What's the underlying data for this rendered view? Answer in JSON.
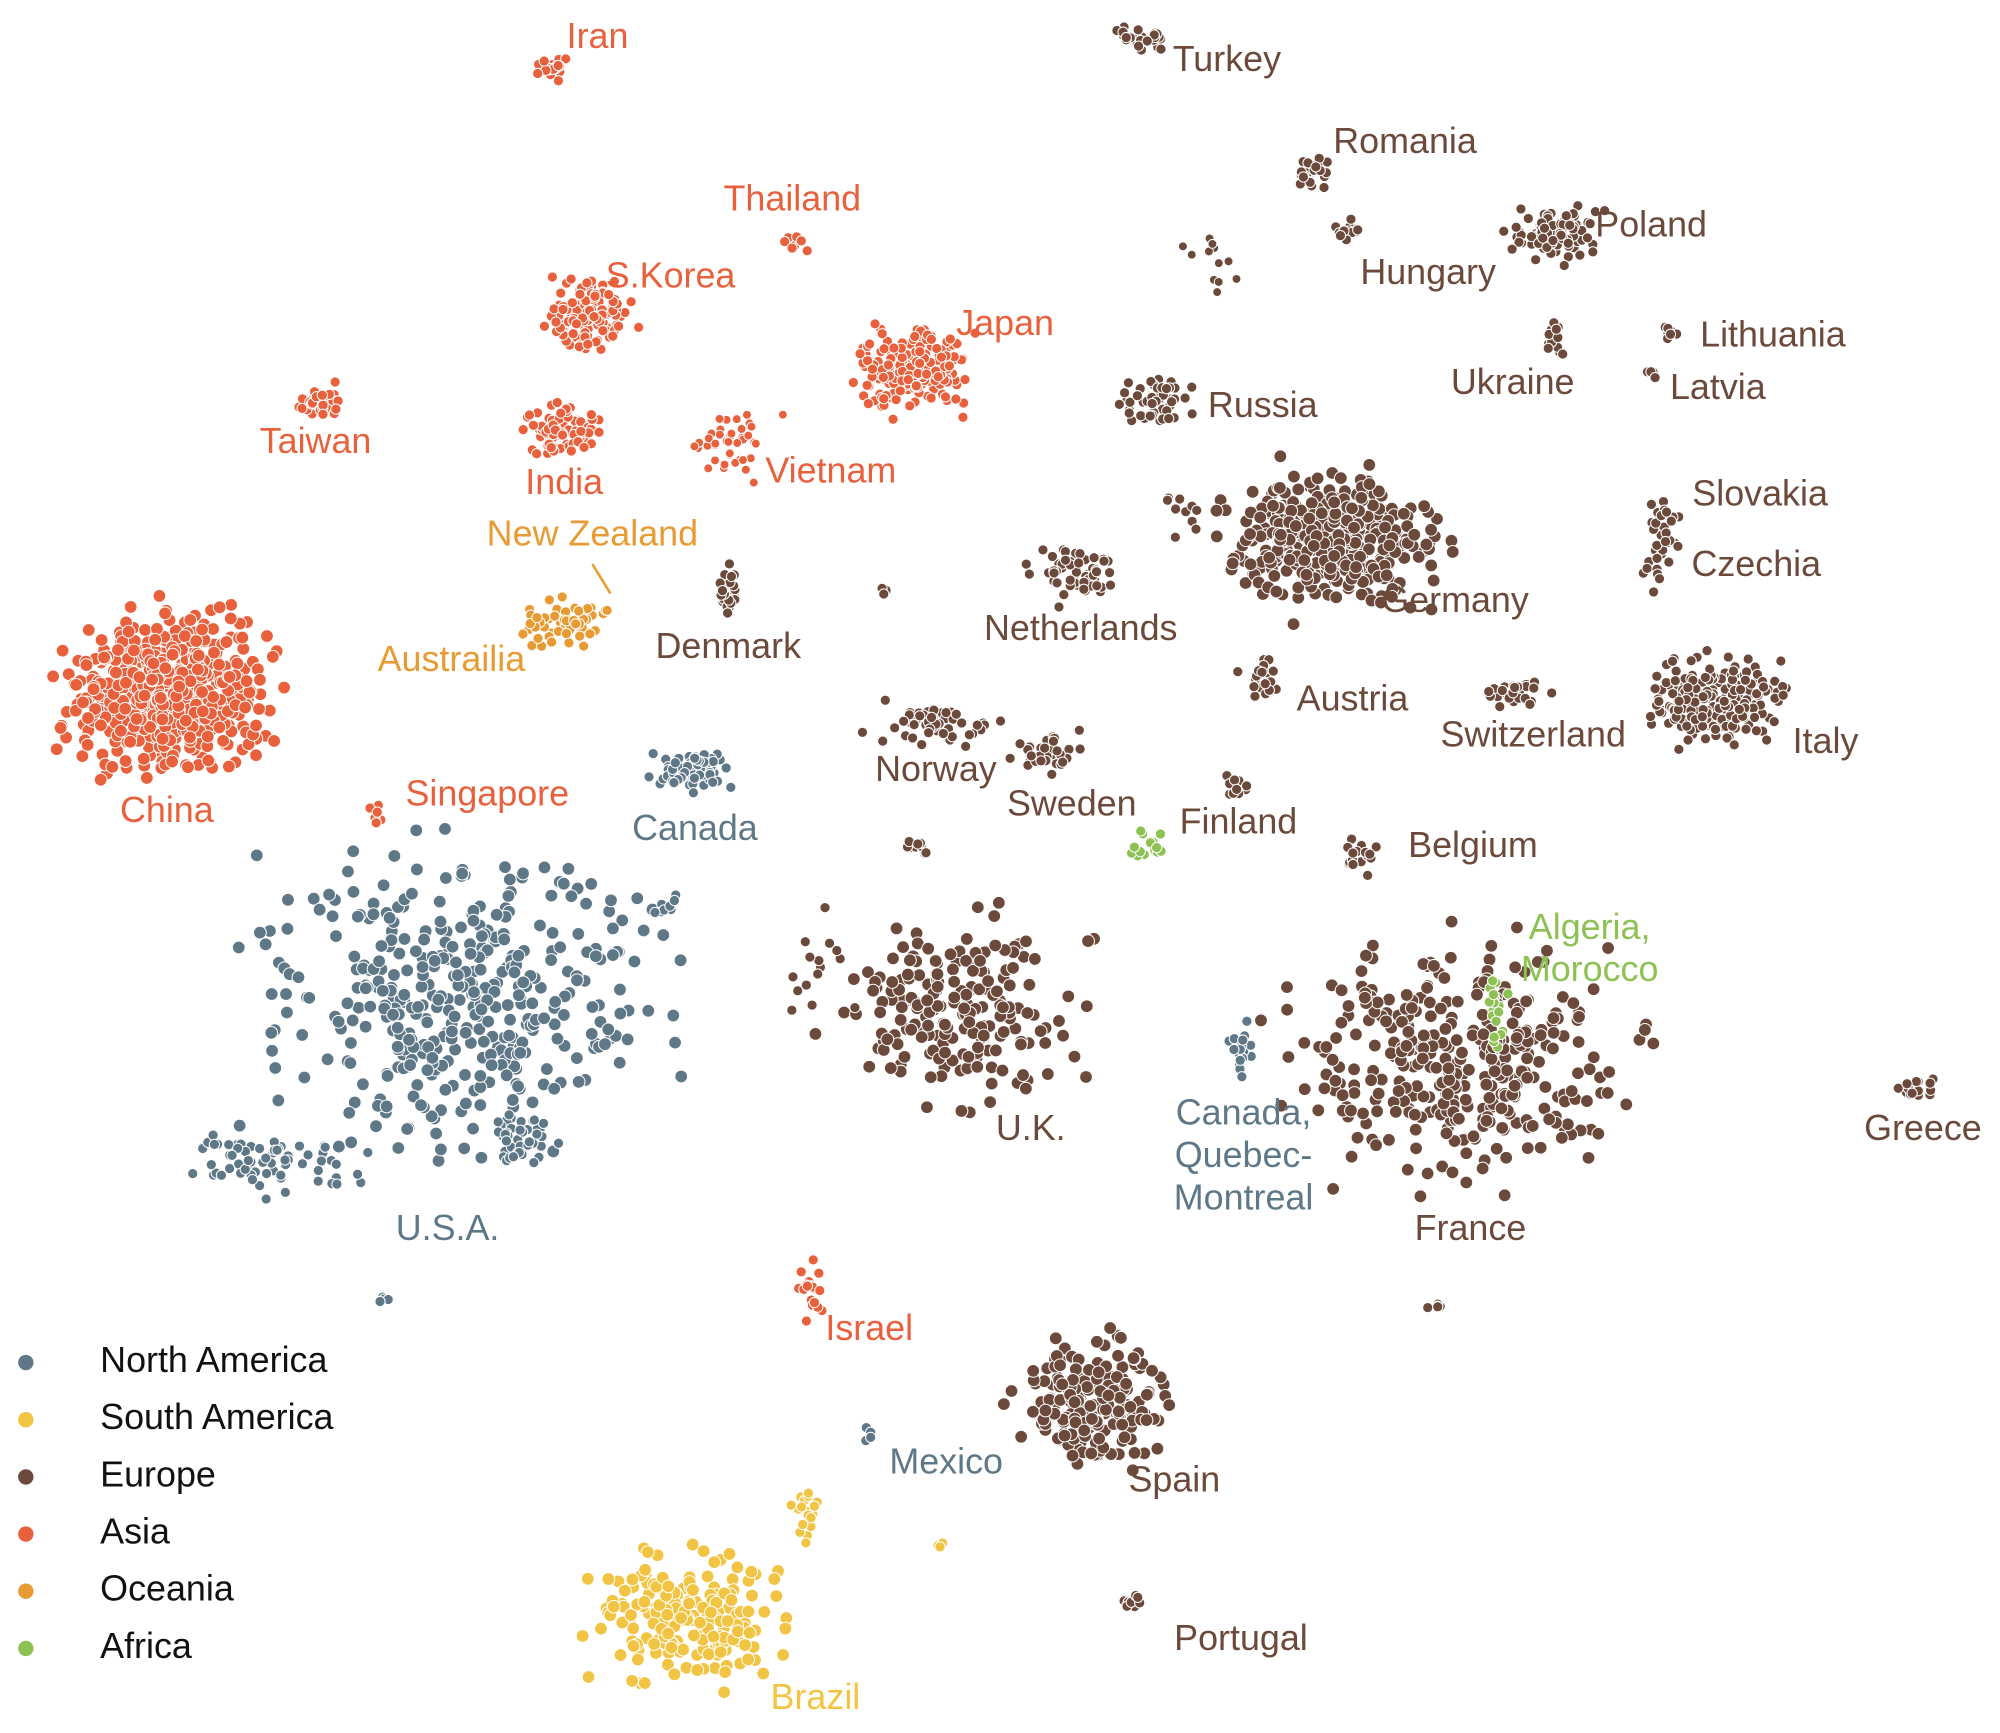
{
  "legend": {
    "items": [
      {
        "name": "North America",
        "color": "#5f7888"
      },
      {
        "name": "South America",
        "color": "#f2c444"
      },
      {
        "name": "Europe",
        "color": "#6b4a3c"
      },
      {
        "name": "Asia",
        "color": "#e8603c"
      },
      {
        "name": "Oceania",
        "color": "#e99b33"
      },
      {
        "name": "Africa",
        "color": "#8dc153"
      }
    ]
  },
  "labels": [
    {
      "lines": [
        "Iran"
      ],
      "color": "#e8603c"
    },
    {
      "lines": [
        "Turkey"
      ],
      "color": "#6b4a3c"
    },
    {
      "lines": [
        "Romania"
      ],
      "color": "#6b4a3c"
    },
    {
      "lines": [
        "Thailand"
      ],
      "color": "#e8603c"
    },
    {
      "lines": [
        "Poland"
      ],
      "color": "#6b4a3c"
    },
    {
      "lines": [
        "S.Korea"
      ],
      "color": "#e8603c"
    },
    {
      "lines": [
        "Hungary"
      ],
      "color": "#6b4a3c"
    },
    {
      "lines": [
        "Japan"
      ],
      "color": "#e8603c"
    },
    {
      "lines": [
        "Lithuania"
      ],
      "color": "#6b4a3c"
    },
    {
      "lines": [
        "Ukraine"
      ],
      "color": "#6b4a3c"
    },
    {
      "lines": [
        "Latvia"
      ],
      "color": "#6b4a3c"
    },
    {
      "lines": [
        "Taiwan"
      ],
      "color": "#e8603c"
    },
    {
      "lines": [
        "Russia"
      ],
      "color": "#6b4a3c"
    },
    {
      "lines": [
        "Vietnam"
      ],
      "color": "#e8603c"
    },
    {
      "lines": [
        "India"
      ],
      "color": "#e8603c"
    },
    {
      "lines": [
        "Slovakia"
      ],
      "color": "#6b4a3c"
    },
    {
      "lines": [
        "New Zealand"
      ],
      "color": "#e99b33"
    },
    {
      "lines": [
        "Czechia"
      ],
      "color": "#6b4a3c"
    },
    {
      "lines": [
        "Germany"
      ],
      "color": "#6b4a3c"
    },
    {
      "lines": [
        "Netherlands"
      ],
      "color": "#6b4a3c"
    },
    {
      "lines": [
        "Denmark"
      ],
      "color": "#6b4a3c"
    },
    {
      "lines": [
        "Austrailia"
      ],
      "color": "#e99b33"
    },
    {
      "lines": [
        "Austria"
      ],
      "color": "#6b4a3c"
    },
    {
      "lines": [
        "Switzerland"
      ],
      "color": "#6b4a3c"
    },
    {
      "lines": [
        "Italy"
      ],
      "color": "#6b4a3c"
    },
    {
      "lines": [
        "Norway"
      ],
      "color": "#6b4a3c"
    },
    {
      "lines": [
        "China"
      ],
      "color": "#e8603c"
    },
    {
      "lines": [
        "Singapore"
      ],
      "color": "#e8603c"
    },
    {
      "lines": [
        "Sweden"
      ],
      "color": "#6b4a3c"
    },
    {
      "lines": [
        "Finland"
      ],
      "color": "#6b4a3c"
    },
    {
      "lines": [
        "Canada"
      ],
      "color": "#5f7888"
    },
    {
      "lines": [
        "Belgium"
      ],
      "color": "#6b4a3c"
    },
    {
      "lines": [
        "Algeria,",
        "Morocco"
      ],
      "color": "#8dc153"
    },
    {
      "lines": [
        "U.K."
      ],
      "color": "#6b4a3c"
    },
    {
      "lines": [
        "Canada,",
        "Quebec-",
        "Montreal"
      ],
      "color": "#5f7888"
    },
    {
      "lines": [
        "Greece"
      ],
      "color": "#6b4a3c"
    },
    {
      "lines": [
        "U.S.A."
      ],
      "color": "#5f7888"
    },
    {
      "lines": [
        "France"
      ],
      "color": "#6b4a3c"
    },
    {
      "lines": [
        "Israel"
      ],
      "color": "#e8603c"
    },
    {
      "lines": [
        "Mexico"
      ],
      "color": "#5f7888"
    },
    {
      "lines": [
        "Spain"
      ],
      "color": "#6b4a3c"
    },
    {
      "lines": [
        "Portugal"
      ],
      "color": "#6b4a3c"
    },
    {
      "lines": [
        "Brazil"
      ],
      "color": "#f2c444"
    }
  ]
}
